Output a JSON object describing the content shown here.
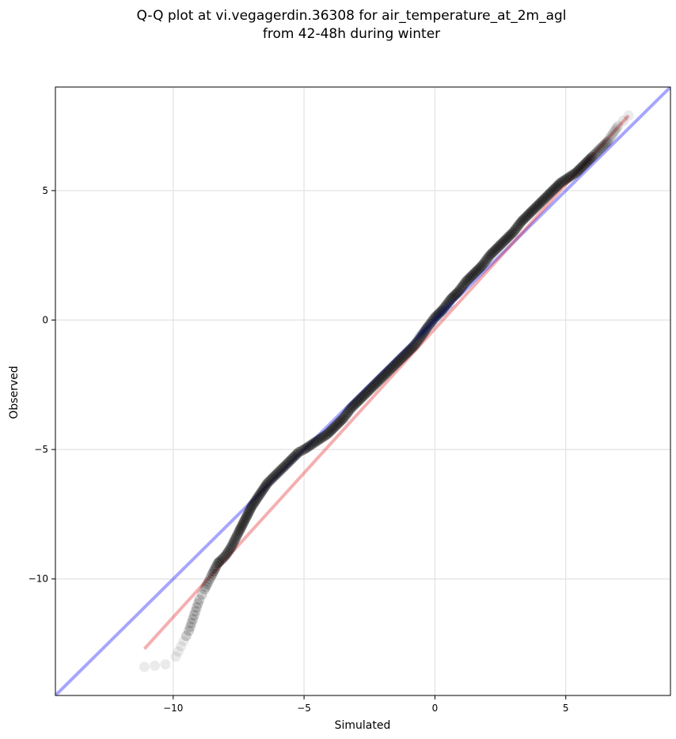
{
  "chart_data": {
    "type": "scatter",
    "title": [
      "Q-Q plot at vi.vegagerdin.36308 for air_temperature_at_2m_agl",
      "from 42-48h during winter"
    ],
    "xlabel": "Simulated",
    "ylabel": "Observed",
    "xlim": [
      -14.5,
      9.0
    ],
    "ylim": [
      -14.5,
      9.0
    ],
    "xticks": [
      -10,
      -5,
      0,
      5
    ],
    "yticks": [
      -10,
      -5,
      0,
      5
    ],
    "xtick_labels": [
      "−10",
      "−5",
      "0",
      "5"
    ],
    "ytick_labels": [
      "−10",
      "−5",
      "0",
      "5"
    ],
    "grid": true,
    "colors": {
      "points": "#000000",
      "identity_line": "#0000ff",
      "fit_line": "#e31a1c",
      "center_points": "#0a1a8a",
      "lower_points": "#3a0000"
    },
    "identity_line": {
      "x": [
        -14.5,
        9.0
      ],
      "y": [
        -14.5,
        9.0
      ]
    },
    "fit_line": {
      "x": [
        -11.1,
        7.4
      ],
      "y": [
        -12.7,
        7.9
      ]
    },
    "series": [
      {
        "x": [
          -11.1,
          -10.3,
          -9.9,
          -9.8,
          -9.7,
          -9.6,
          -9.5,
          -9.4,
          -9.3,
          -9.2,
          -9.1,
          -9.0,
          -8.9,
          -8.8,
          -8.7,
          -8.6,
          -8.5,
          -8.4,
          -8.3,
          -8.2,
          -8.0,
          -7.8,
          -7.6,
          -7.4,
          -7.2,
          -7.0,
          -6.8,
          -6.6,
          -6.4,
          -6.2,
          -6.0,
          -5.8,
          -5.6,
          -5.4,
          -5.2,
          -5.0,
          -4.7,
          -4.4,
          -4.1,
          -3.8,
          -3.5,
          -3.2,
          -2.9,
          -2.6,
          -2.3,
          -2.0,
          -1.7,
          -1.4,
          -1.1,
          -0.8,
          -0.5,
          -0.3,
          0.0,
          0.3,
          0.6,
          0.9,
          1.2,
          1.5,
          1.8,
          2.1,
          2.4,
          2.7,
          3.0,
          3.3,
          3.6,
          3.9,
          4.2,
          4.5,
          4.8,
          5.1,
          5.4,
          5.7,
          6.0,
          6.3,
          6.6,
          6.8,
          7.0,
          7.2,
          7.4
        ],
        "y": [
          -13.4,
          -13.3,
          -13.0,
          -12.8,
          -12.6,
          -12.4,
          -12.2,
          -12.0,
          -11.7,
          -11.4,
          -11.1,
          -10.8,
          -10.6,
          -10.4,
          -10.2,
          -10.0,
          -9.8,
          -9.6,
          -9.4,
          -9.3,
          -9.1,
          -8.8,
          -8.4,
          -8.0,
          -7.6,
          -7.2,
          -6.9,
          -6.6,
          -6.3,
          -6.1,
          -5.9,
          -5.7,
          -5.5,
          -5.3,
          -5.1,
          -5.0,
          -4.8,
          -4.6,
          -4.4,
          -4.1,
          -3.8,
          -3.4,
          -3.1,
          -2.8,
          -2.5,
          -2.2,
          -1.9,
          -1.6,
          -1.3,
          -1.0,
          -0.6,
          -0.3,
          0.1,
          0.4,
          0.8,
          1.1,
          1.5,
          1.8,
          2.1,
          2.5,
          2.8,
          3.1,
          3.4,
          3.8,
          4.1,
          4.4,
          4.7,
          5.0,
          5.3,
          5.5,
          5.7,
          6.0,
          6.3,
          6.6,
          6.9,
          7.2,
          7.5,
          7.7,
          7.9
        ]
      }
    ]
  }
}
